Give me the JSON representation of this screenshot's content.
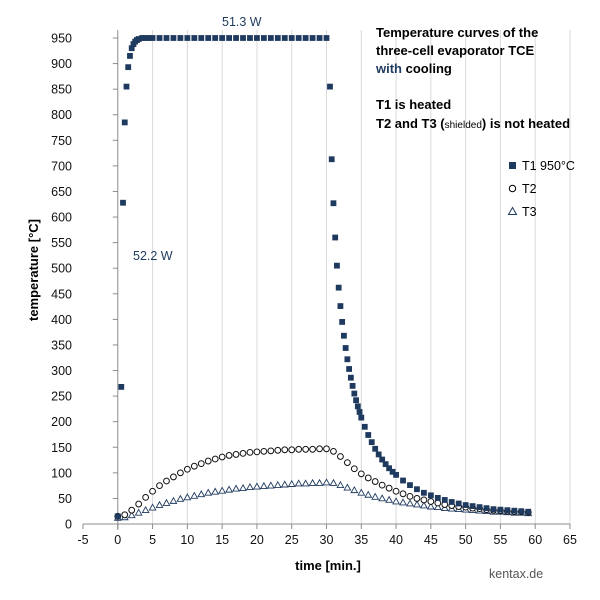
{
  "colors": {
    "accent": "#1F3A5F",
    "grid": "#d9d9d9",
    "axis": "#8c8c8c",
    "text": "#000000"
  },
  "title": {
    "line1": "Temperature curves of the",
    "line2": "three-cell evaporator TCE",
    "line3_accent": "with",
    "line3_rest": " cooling",
    "line4": "T1 is heated",
    "line5_a": "T2 and T3 (",
    "line5_small": "shielded",
    "line5_b": ") is not heated"
  },
  "annotations": {
    "top_power": "51.3 W",
    "left_power": "52.2 W"
  },
  "watermark": "kentax.de",
  "chart_data": {
    "type": "scatter",
    "xlabel": "time [min.]",
    "ylabel": "temperature [°C]",
    "xlim": [
      -5,
      65
    ],
    "ylim": [
      0,
      950
    ],
    "x_ticks": [
      "-5",
      "0",
      "5",
      "10",
      "15",
      "20",
      "25",
      "30",
      "35",
      "40",
      "45",
      "50",
      "55",
      "60",
      "65"
    ],
    "y_ticks": [
      "0",
      "50",
      "100",
      "150",
      "200",
      "250",
      "300",
      "350",
      "400",
      "450",
      "500",
      "550",
      "600",
      "650",
      "700",
      "750",
      "800",
      "850",
      "900",
      "950"
    ],
    "grid": "vertical",
    "legend_position": "right",
    "series": [
      {
        "name": "T1 950°C",
        "marker": "square",
        "x": [
          0,
          0.5,
          0.75,
          1.0,
          1.25,
          1.5,
          1.75,
          2.0,
          2.25,
          2.5,
          2.75,
          3.0,
          3.5,
          4,
          4.5,
          5,
          6,
          7,
          8,
          9,
          10,
          11,
          12,
          13,
          14,
          15,
          16,
          17,
          18,
          19,
          20,
          21,
          22,
          23,
          24,
          25,
          26,
          27,
          28,
          29,
          30,
          30.5,
          30.75,
          31.0,
          31.25,
          31.5,
          31.75,
          32.0,
          32.25,
          32.5,
          32.75,
          33.0,
          33.25,
          33.5,
          33.75,
          34.0,
          34.25,
          34.5,
          34.75,
          35.0,
          35.5,
          36,
          36.5,
          37,
          37.5,
          38,
          38.5,
          39,
          39.5,
          40,
          41,
          42,
          43,
          44,
          45,
          46,
          47,
          48,
          49,
          50,
          51,
          52,
          53,
          54,
          55,
          56,
          57,
          58,
          59
        ],
        "y": [
          15,
          268,
          628,
          785,
          855,
          893,
          915,
          930,
          938,
          943,
          946,
          948,
          950,
          950,
          950,
          950,
          950,
          950,
          950,
          950,
          950,
          950,
          950,
          950,
          950,
          950,
          950,
          950,
          950,
          950,
          950,
          950,
          950,
          950,
          950,
          950,
          950,
          950,
          950,
          950,
          950,
          855,
          713,
          627,
          560,
          505,
          462,
          426,
          395,
          368,
          344,
          322,
          303,
          286,
          270,
          255,
          242,
          230,
          219,
          208,
          190,
          174,
          160,
          147,
          136,
          126,
          117,
          109,
          102,
          96,
          85,
          76,
          68,
          61,
          56,
          51,
          47,
          43,
          40,
          37,
          35,
          33,
          31,
          29,
          28,
          27,
          26,
          25,
          24
        ]
      },
      {
        "name": "T2",
        "marker": "circle",
        "x": [
          0,
          1,
          2,
          3,
          4,
          5,
          6,
          7,
          8,
          9,
          10,
          11,
          12,
          13,
          14,
          15,
          16,
          17,
          18,
          19,
          20,
          21,
          22,
          23,
          24,
          25,
          26,
          27,
          28,
          29,
          30,
          31,
          32,
          33,
          34,
          35,
          36,
          37,
          38,
          39,
          40,
          41,
          42,
          43,
          44,
          45,
          46,
          47,
          48,
          49,
          50,
          51,
          52,
          53,
          54,
          55,
          56,
          57,
          58,
          59
        ],
        "y": [
          15,
          18,
          27,
          39,
          52,
          64,
          75,
          84,
          92,
          100,
          107,
          113,
          118,
          123,
          127,
          131,
          134,
          136,
          138,
          140,
          141,
          142,
          143,
          144,
          145,
          145,
          146,
          146,
          146,
          147,
          147,
          142,
          132,
          120,
          108,
          98,
          90,
          83,
          76,
          70,
          64,
          59,
          54,
          50,
          47,
          44,
          41,
          38,
          36,
          34,
          33,
          31,
          30,
          28,
          27,
          26,
          25,
          24,
          24,
          23
        ]
      },
      {
        "name": "T3",
        "marker": "triangle",
        "x": [
          0,
          1,
          2,
          3,
          4,
          5,
          6,
          7,
          8,
          9,
          10,
          11,
          12,
          13,
          14,
          15,
          16,
          17,
          18,
          19,
          20,
          21,
          22,
          23,
          24,
          25,
          26,
          27,
          28,
          29,
          30,
          31,
          32,
          33,
          34,
          35,
          36,
          37,
          38,
          39,
          40,
          41,
          42,
          43,
          44,
          45,
          46,
          47,
          48,
          49,
          50,
          51,
          52,
          53,
          54,
          55,
          56,
          57,
          58,
          59
        ],
        "y": [
          12,
          13,
          17,
          22,
          27,
          32,
          37,
          41,
          45,
          49,
          52,
          55,
          58,
          61,
          63,
          65,
          67,
          69,
          70,
          72,
          73,
          74,
          75,
          76,
          77,
          78,
          79,
          79,
          80,
          80,
          81,
          80,
          76,
          71,
          66,
          61,
          57,
          53,
          50,
          47,
          44,
          42,
          40,
          38,
          36,
          34,
          33,
          31,
          30,
          29,
          28,
          27,
          26,
          25,
          24,
          24,
          23,
          22,
          22,
          21
        ]
      }
    ]
  }
}
